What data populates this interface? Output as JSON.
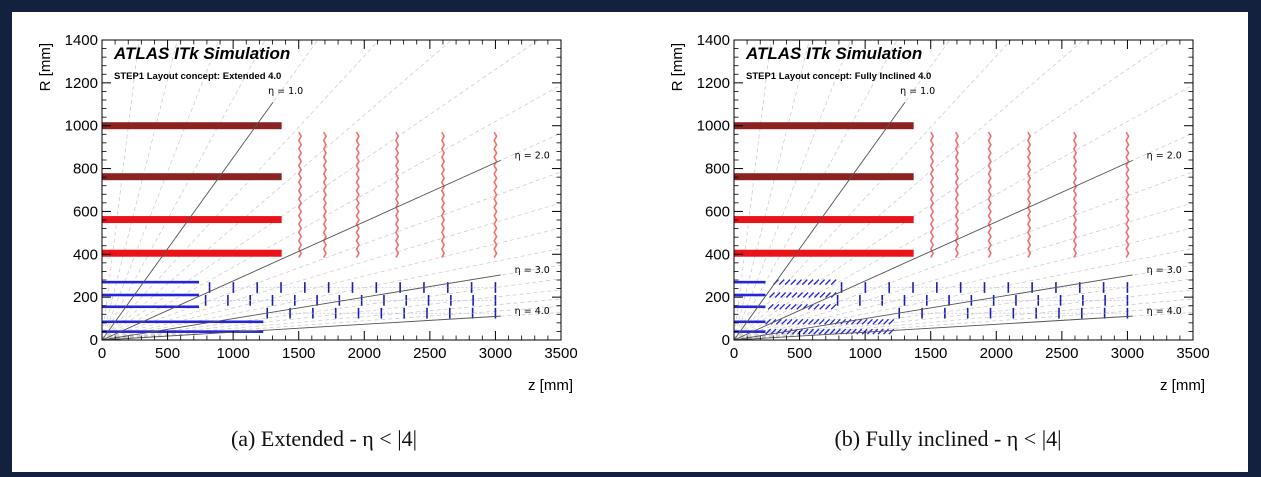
{
  "chart_data": [
    {
      "type": "scatter",
      "title": "ATLAS ITk Simulation",
      "subtitle": "STEP1 Layout concept: Extended 4.0",
      "xlabel": "z [mm]",
      "ylabel": "R [mm]",
      "xlim": [
        0,
        3500
      ],
      "ylim": [
        0,
        1400
      ],
      "xticks": [
        "0",
        "500",
        "1000",
        "1500",
        "2000",
        "2500",
        "3000",
        "3500"
      ],
      "yticks": [
        "0",
        "200",
        "400",
        "600",
        "800",
        "1000",
        "1200",
        "1400"
      ],
      "eta_lines": [
        {
          "label": "η = 1.0",
          "eta": 1.0
        },
        {
          "label": "η = 2.0",
          "eta": 2.0
        },
        {
          "label": "η = 3.0",
          "eta": 3.0
        },
        {
          "label": "η = 4.0",
          "eta": 4.0
        }
      ],
      "strip_barrel": [
        {
          "r": 1000,
          "z_max": 1370,
          "color": "#8b2323"
        },
        {
          "r": 762,
          "z_max": 1370,
          "color": "#8b2323"
        },
        {
          "r": 562,
          "z_max": 1370,
          "color": "#e8141a"
        },
        {
          "r": 405,
          "z_max": 1370,
          "color": "#e8141a"
        }
      ],
      "strip_endcap": {
        "z": [
          1510,
          1700,
          1950,
          2250,
          2600,
          3000
        ],
        "r_min": 385,
        "r_max": 970,
        "color": "#f07070"
      },
      "pixel_barrel": [
        {
          "r": 270,
          "z_max": 740
        },
        {
          "r": 210,
          "z_max": 740
        },
        {
          "r": 155,
          "z_max": 740
        },
        {
          "r": 85,
          "z_max": 1230
        },
        {
          "r": 39,
          "z_max": 1230
        }
      ],
      "pixel_rings": [
        {
          "r": 245,
          "z_start": 820,
          "z_end": 3000,
          "n": 13
        },
        {
          "r": 185,
          "z_start": 790,
          "z_end": 3000,
          "n": 14
        },
        {
          "r": 125,
          "z_start": 1260,
          "z_end": 3000,
          "n": 11
        }
      ]
    },
    {
      "type": "scatter",
      "title": "ATLAS ITk Simulation",
      "subtitle": "STEP1 Layout concept: Fully Inclined 4.0",
      "xlabel": "z [mm]",
      "ylabel": "R [mm]",
      "xlim": [
        0,
        3500
      ],
      "ylim": [
        0,
        1400
      ],
      "xticks": [
        "0",
        "500",
        "1000",
        "1500",
        "2000",
        "2500",
        "3000",
        "3500"
      ],
      "yticks": [
        "0",
        "200",
        "400",
        "600",
        "800",
        "1000",
        "1200",
        "1400"
      ],
      "eta_lines": [
        {
          "label": "η = 1.0",
          "eta": 1.0
        },
        {
          "label": "η = 2.0",
          "eta": 2.0
        },
        {
          "label": "η = 3.0",
          "eta": 3.0
        },
        {
          "label": "η = 4.0",
          "eta": 4.0
        }
      ],
      "strip_barrel": [
        {
          "r": 1000,
          "z_max": 1370,
          "color": "#8b2323"
        },
        {
          "r": 762,
          "z_max": 1370,
          "color": "#8b2323"
        },
        {
          "r": 562,
          "z_max": 1370,
          "color": "#e8141a"
        },
        {
          "r": 405,
          "z_max": 1370,
          "color": "#e8141a"
        }
      ],
      "strip_endcap": {
        "z": [
          1510,
          1700,
          1950,
          2250,
          2600,
          3000
        ],
        "r_min": 385,
        "r_max": 970,
        "color": "#f07070"
      },
      "pixel_barrel": [
        {
          "r": 270,
          "z_max": 240
        },
        {
          "r": 210,
          "z_max": 240
        },
        {
          "r": 155,
          "z_max": 240
        },
        {
          "r": 85,
          "z_max": 240
        },
        {
          "r": 39,
          "z_max": 240
        }
      ],
      "pixel_inclined": [
        {
          "r": 270,
          "z_start": 320,
          "z_end": 760
        },
        {
          "r": 210,
          "z_start": 290,
          "z_end": 760
        },
        {
          "r": 155,
          "z_start": 280,
          "z_end": 760
        },
        {
          "r": 85,
          "z_start": 260,
          "z_end": 1200
        },
        {
          "r": 39,
          "z_start": 260,
          "z_end": 1200
        }
      ],
      "pixel_rings": [
        {
          "r": 245,
          "z_start": 820,
          "z_end": 3000,
          "n": 13
        },
        {
          "r": 185,
          "z_start": 790,
          "z_end": 3000,
          "n": 14
        },
        {
          "r": 125,
          "z_start": 1260,
          "z_end": 3000,
          "n": 11
        }
      ]
    }
  ],
  "captions": [
    "(a)  Extended - η < |4|",
    "(b)  Fully inclined - η < |4|"
  ]
}
